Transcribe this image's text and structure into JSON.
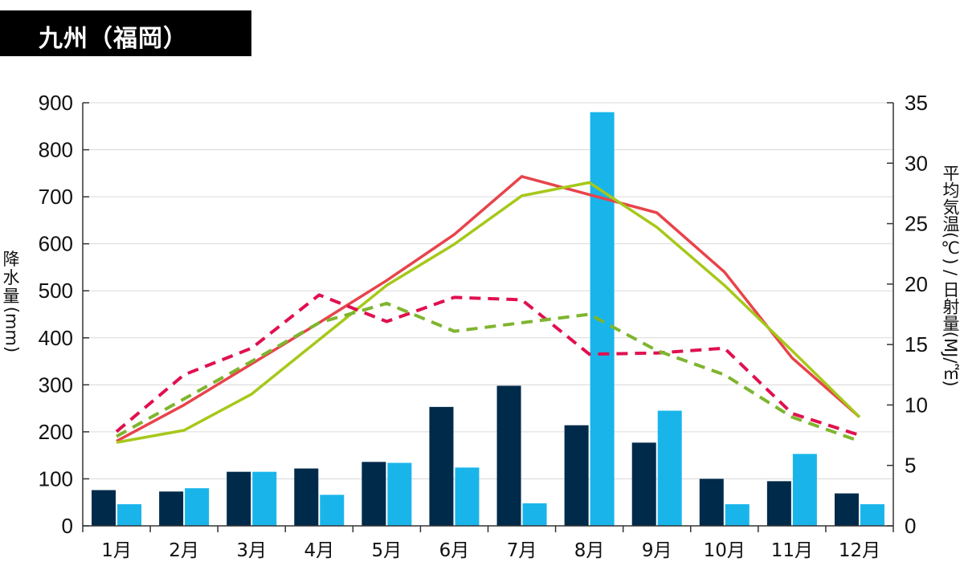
{
  "title": "九州（福岡）",
  "colors": {
    "rain_dark": "#002a4a",
    "rain_light": "#19b5ea",
    "temp_red": "#e8434b",
    "temp_green": "#a6c81a",
    "sun_red": "#e0104f",
    "sun_green": "#7eb52e",
    "grid": "#d9d9d9",
    "axis": "#333333"
  },
  "chart_data": {
    "type": "bar",
    "categories": [
      "1月",
      "2月",
      "3月",
      "4月",
      "5月",
      "6月",
      "7月",
      "8月",
      "9月",
      "10月",
      "11月",
      "12月"
    ],
    "left_axis": {
      "label_chars": [
        "降",
        "水",
        "量"
      ],
      "label_unit": "(mm)",
      "ylim": [
        0,
        900
      ],
      "ticks": [
        "0",
        "100",
        "200",
        "300",
        "400",
        "500",
        "600",
        "700",
        "800",
        "900"
      ]
    },
    "right_axis": {
      "label": "平均気温(℃) / 日射量(MJ/㎡)",
      "ylim": [
        0,
        35
      ],
      "ticks": [
        "0",
        "5",
        "10",
        "15",
        "20",
        "25",
        "30",
        "35"
      ]
    },
    "grid": true,
    "bar_series": [
      {
        "style": "dark",
        "values": [
          76,
          73,
          115,
          122,
          136,
          253,
          298,
          214,
          177,
          100,
          95,
          69
        ]
      },
      {
        "style": "light",
        "values": [
          46,
          80,
          115,
          66,
          134,
          124,
          48,
          880,
          245,
          46,
          153,
          46
        ]
      }
    ],
    "line_series": [
      {
        "style": "red-solid",
        "values": [
          7.0,
          10.0,
          13.4,
          16.8,
          20.3,
          24.1,
          28.9,
          27.4,
          25.9,
          21.0,
          13.9,
          9.0
        ]
      },
      {
        "style": "green-solid",
        "values": [
          6.9,
          7.9,
          10.9,
          15.4,
          19.9,
          23.3,
          27.3,
          28.4,
          24.7,
          19.9,
          14.5,
          9.0
        ]
      },
      {
        "style": "red-dashed",
        "values": [
          7.8,
          12.5,
          14.7,
          19.1,
          16.9,
          18.9,
          18.7,
          14.2,
          14.3,
          14.7,
          9.3,
          7.5
        ]
      },
      {
        "style": "green-dashed",
        "values": [
          7.4,
          10.5,
          13.6,
          16.8,
          18.4,
          16.1,
          16.8,
          17.5,
          14.5,
          12.5,
          9.0,
          7.0
        ]
      }
    ]
  }
}
